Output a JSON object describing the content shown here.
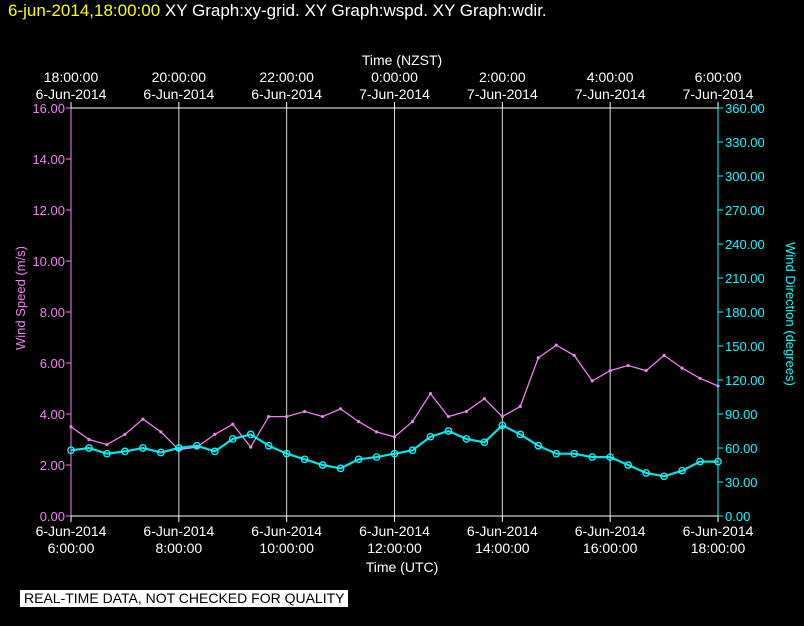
{
  "header": {
    "timestamp": "6-jun-2014,18:00:00",
    "graph_titles": "XY Graph:xy-grid.  XY Graph:wspd.  XY Graph:wdir."
  },
  "quality_notice": "REAL-TIME DATA, NOT CHECKED FOR QUALITY",
  "colors": {
    "background": "#000000",
    "axis": "#ffffff",
    "wind_speed": "#ee82ee",
    "wind_direction": "#00ffff",
    "header_timestamp": "#ffff00"
  },
  "chart_data": {
    "type": "line",
    "grid": "vertical",
    "x_top": {
      "label": "Time (NZST)",
      "ticks": [
        {
          "time": "18:00:00",
          "date": "6-Jun-2014"
        },
        {
          "time": "20:00:00",
          "date": "6-Jun-2014"
        },
        {
          "time": "22:00:00",
          "date": "6-Jun-2014"
        },
        {
          "time": "0:00:00",
          "date": "7-Jun-2014"
        },
        {
          "time": "2:00:00",
          "date": "7-Jun-2014"
        },
        {
          "time": "4:00:00",
          "date": "7-Jun-2014"
        },
        {
          "time": "6:00:00",
          "date": "7-Jun-2014"
        }
      ]
    },
    "x_bottom": {
      "label": "Time (UTC)",
      "range": [
        "2014-06-06 06:00:00",
        "2014-06-06 18:00:00"
      ],
      "ticks": [
        {
          "date": "6-Jun-2014",
          "time": "6:00:00"
        },
        {
          "date": "6-Jun-2014",
          "time": "8:00:00"
        },
        {
          "date": "6-Jun-2014",
          "time": "10:00:00"
        },
        {
          "date": "6-Jun-2014",
          "time": "12:00:00"
        },
        {
          "date": "6-Jun-2014",
          "time": "14:00:00"
        },
        {
          "date": "6-Jun-2014",
          "time": "16:00:00"
        },
        {
          "date": "6-Jun-2014",
          "time": "18:00:00"
        }
      ]
    },
    "y_left": {
      "label": "Wind Speed (m/s)",
      "range": [
        0,
        16
      ],
      "ticks": [
        "0.00",
        "2.00",
        "4.00",
        "6.00",
        "8.00",
        "10.00",
        "12.00",
        "14.00",
        "16.00"
      ]
    },
    "y_right": {
      "label": "Wind Direction (degrees)",
      "range": [
        0,
        360
      ],
      "ticks": [
        "0.00",
        "30.00",
        "60.00",
        "90.00",
        "120.00",
        "150.00",
        "180.00",
        "210.00",
        "240.00",
        "270.00",
        "300.00",
        "330.00",
        "360.00"
      ]
    },
    "series": [
      {
        "name": "Wind Speed (m/s)",
        "axis": "left",
        "style": "line",
        "x": [
          "06:00",
          "06:20",
          "06:40",
          "07:00",
          "07:20",
          "07:40",
          "08:00",
          "08:20",
          "08:40",
          "09:00",
          "09:20",
          "09:40",
          "10:00",
          "10:20",
          "10:40",
          "11:00",
          "11:20",
          "11:40",
          "12:00",
          "12:20",
          "12:40",
          "13:00",
          "13:20",
          "13:40",
          "14:00",
          "14:20",
          "14:40",
          "15:00",
          "15:20",
          "15:40",
          "16:00",
          "16:20",
          "16:40",
          "17:00",
          "17:20",
          "17:40",
          "18:00"
        ],
        "values": [
          3.5,
          3.0,
          2.8,
          3.2,
          3.8,
          3.3,
          2.6,
          2.7,
          3.2,
          3.6,
          2.7,
          3.9,
          3.9,
          4.1,
          3.9,
          4.2,
          3.7,
          3.3,
          3.1,
          3.7,
          4.8,
          3.9,
          4.1,
          4.6,
          3.9,
          4.3,
          6.2,
          6.7,
          6.3,
          5.3,
          5.7,
          5.9,
          5.7,
          6.3,
          5.8,
          5.4,
          5.1
        ]
      },
      {
        "name": "Wind Direction (degrees)",
        "axis": "right",
        "style": "markers",
        "x": [
          "06:00",
          "06:20",
          "06:40",
          "07:00",
          "07:20",
          "07:40",
          "08:00",
          "08:20",
          "08:40",
          "09:00",
          "09:20",
          "09:40",
          "10:00",
          "10:20",
          "10:40",
          "11:00",
          "11:20",
          "11:40",
          "12:00",
          "12:20",
          "12:40",
          "13:00",
          "13:20",
          "13:40",
          "14:00",
          "14:20",
          "14:40",
          "15:00",
          "15:20",
          "15:40",
          "16:00",
          "16:20",
          "16:40",
          "17:00",
          "17:20",
          "17:40",
          "18:00"
        ],
        "values": [
          58,
          60,
          55,
          57,
          60,
          56,
          60,
          62,
          57,
          68,
          72,
          62,
          55,
          50,
          45,
          42,
          50,
          52,
          55,
          58,
          70,
          75,
          68,
          65,
          80,
          72,
          62,
          55,
          55,
          52,
          52,
          45,
          38,
          35,
          40,
          48,
          48
        ]
      }
    ]
  }
}
